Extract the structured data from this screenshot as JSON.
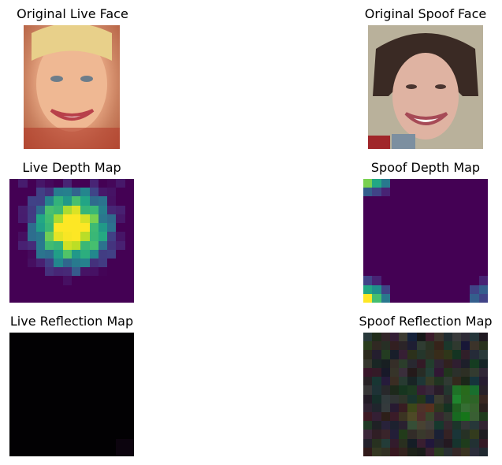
{
  "panels": {
    "live_face": {
      "title": "Original Live Face"
    },
    "spoof_face": {
      "title": "Original Spoof Face"
    },
    "live_depth": {
      "title": "Live Depth Map"
    },
    "spoof_depth": {
      "title": "Spoof Depth Map"
    },
    "live_reflection": {
      "title": "Live Reflection Map"
    },
    "spoof_reflection": {
      "title": "Spoof Reflection Map"
    }
  },
  "colors": {
    "viridis_low": "#440154",
    "viridis_mid": "#21908d",
    "viridis_high": "#fde725",
    "reflection_black": "#000000"
  }
}
